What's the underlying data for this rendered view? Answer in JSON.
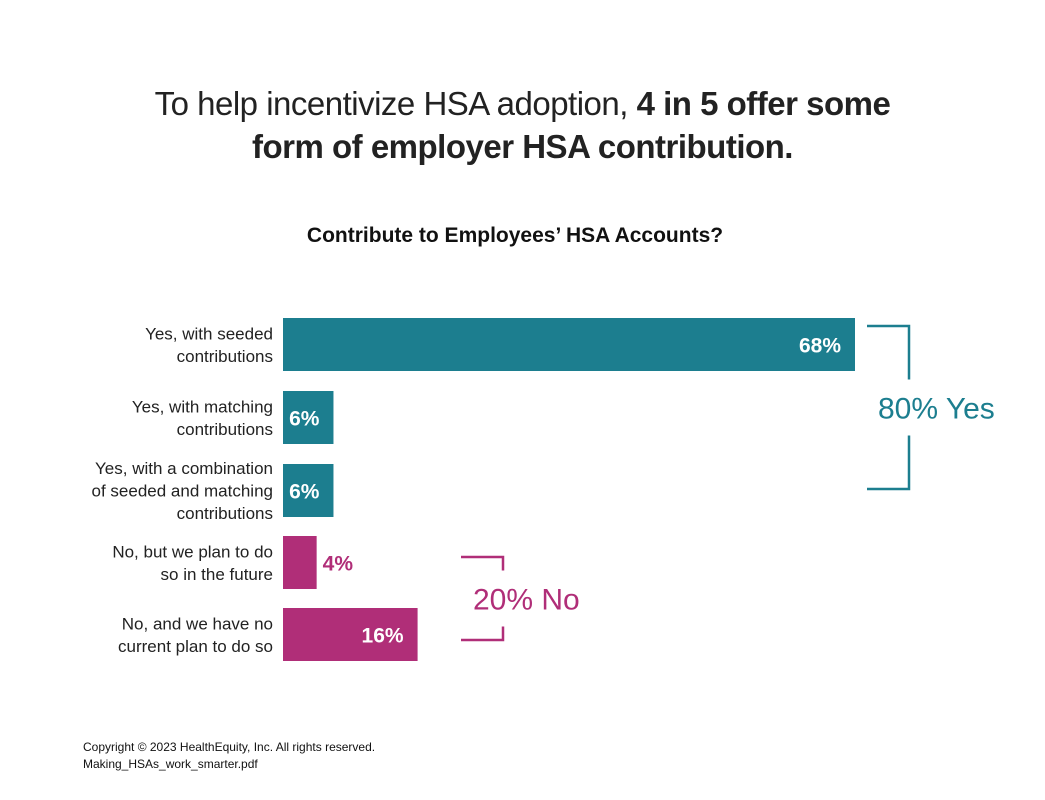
{
  "headline": {
    "regular": "To help incentivize HSA adoption, ",
    "bold_line1": "4 in 5 offer some",
    "bold_line2": "form of employer HSA contribution."
  },
  "chart_data": {
    "type": "bar",
    "orientation": "horizontal",
    "title": "Contribute to Employees’ HSA Accounts?",
    "xlim": [
      0,
      68
    ],
    "categories": [
      [
        "Yes, with seeded",
        "contributions"
      ],
      [
        "Yes, with matching",
        "contributions"
      ],
      [
        "Yes, with a combination",
        "of seeded and matching",
        "contributions"
      ],
      [
        "No, but we plan to do",
        "so in the future"
      ],
      [
        "No, and we have no",
        "current plan to do so"
      ]
    ],
    "values": [
      68,
      6,
      6,
      4,
      16
    ],
    "value_labels": [
      "68%",
      "6%",
      "6%",
      "4%",
      "16%"
    ],
    "groups": [
      {
        "label": "80% Yes",
        "members": [
          0,
          1,
          2
        ],
        "color": "#1c7e8f"
      },
      {
        "label": "20% No",
        "members": [
          3,
          4
        ],
        "color": "#b02e78"
      }
    ],
    "grid": false,
    "legend": "none"
  },
  "footer": {
    "copyright": "Copyright © 2023 HealthEquity, Inc. All rights reserved.",
    "filename": "Making_HSAs_work_smarter.pdf"
  }
}
